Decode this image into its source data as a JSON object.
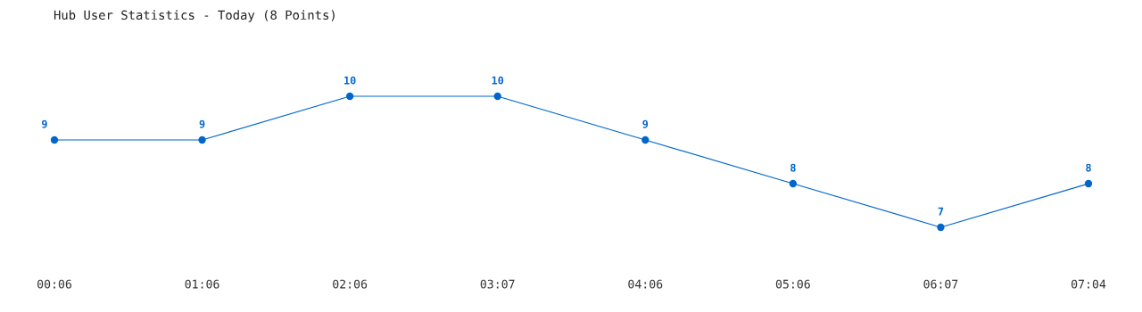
{
  "chart_data": {
    "type": "line",
    "title": "Hub User Statistics - Today (8 Points)",
    "categories": [
      "00:06",
      "01:06",
      "02:06",
      "03:07",
      "04:06",
      "05:06",
      "06:07",
      "07:04"
    ],
    "values": [
      9,
      9,
      10,
      10,
      9,
      8,
      7,
      8
    ],
    "color": "#0066cc",
    "marker": "circle",
    "data_labels": true
  }
}
